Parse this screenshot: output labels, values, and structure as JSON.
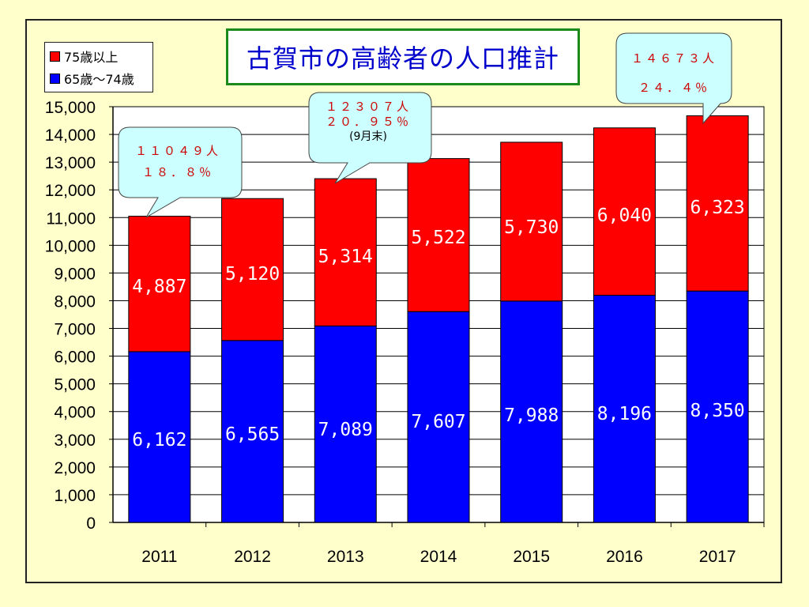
{
  "chart_data": {
    "type": "bar",
    "stacked": true,
    "title": "古賀市の高齢者の人口推計",
    "categories": [
      "2011",
      "2012",
      "2013",
      "2014",
      "2015",
      "2016",
      "2017"
    ],
    "series": [
      {
        "name": "65歳～74歳",
        "color": "#0000ff",
        "values": [
          6162,
          6565,
          7089,
          7607,
          7988,
          8196,
          8350
        ]
      },
      {
        "name": "75歳以上",
        "color": "#ff0000",
        "values": [
          4887,
          5120,
          5314,
          5522,
          5730,
          6040,
          6323
        ]
      }
    ],
    "data_labels": {
      "65歳～74歳": [
        "6,162",
        "6,565",
        "7,089",
        "7,607",
        "7,988",
        "8,196",
        "8,350"
      ],
      "75歳以上": [
        "4,887",
        "5,120",
        "5,314",
        "5,522",
        "5,730",
        "6,040",
        "6,323"
      ]
    },
    "ylim": [
      0,
      15000
    ],
    "ytick_labels": [
      "0",
      "1,000",
      "2,000",
      "3,000",
      "4,000",
      "5,000",
      "6,000",
      "7,000",
      "8,000",
      "9,000",
      "10,000",
      "11,000",
      "12,000",
      "13,000",
      "14,000",
      "15,000"
    ],
    "grid": true,
    "legend_position": "top-left",
    "legend_order": [
      "75歳以上",
      "65歳～74歳"
    ],
    "annotations": [
      {
        "category": "2011",
        "lines": [
          "１１０４９人",
          "１８．８％"
        ]
      },
      {
        "category": "2013",
        "lines": [
          "１２３０７人",
          "２０．９５％"
        ],
        "note": "(9月末)"
      },
      {
        "category": "2017",
        "lines": [
          "１４６７３人",
          "２４．４％"
        ]
      }
    ]
  },
  "colors": {
    "background": "#ffffcc",
    "plot_background": "#ffffff",
    "title_text": "#0000cc",
    "title_border": "#1a8a1a",
    "callout_fill": "#ccffff",
    "callout_text": "#cc0000"
  }
}
